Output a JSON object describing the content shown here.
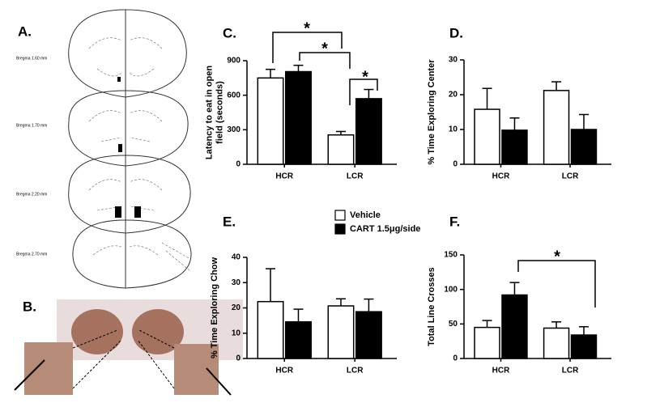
{
  "panel_a": {
    "label": "A.",
    "bregma": [
      "Bregma 1.60 mm",
      "Bregma 1.70 mm",
      "Bregma 2.20 mm",
      "Bregma 2.70 mm"
    ]
  },
  "panel_b": {
    "label": "B."
  },
  "legend": [
    {
      "name": "Vehicle",
      "color": "#ffffff"
    },
    {
      "name": "CART 1.5μg/side",
      "color": "#000000"
    }
  ],
  "chart_data": [
    {
      "type": "bar",
      "panel": "C.",
      "ylabel": [
        "Latency to eat in open",
        "field (seconds)"
      ],
      "categories": [
        "HCR",
        "LCR"
      ],
      "series": [
        {
          "color": "#ffffff",
          "values": [
            750,
            255
          ],
          "errors": [
            75,
            30
          ]
        },
        {
          "color": "#000000",
          "values": [
            805,
            570
          ],
          "errors": [
            55,
            80
          ]
        }
      ],
      "ylim": [
        0,
        900
      ],
      "yticks": [
        0,
        300,
        600,
        900
      ],
      "significance": [
        "*",
        "*",
        "*"
      ]
    },
    {
      "type": "bar",
      "panel": "D.",
      "ylabel": [
        "% Time Exploring Center"
      ],
      "categories": [
        "HCR",
        "LCR"
      ],
      "series": [
        {
          "color": "#ffffff",
          "values": [
            15.8,
            21.2
          ],
          "errors": [
            6,
            2.5
          ]
        },
        {
          "color": "#000000",
          "values": [
            9.8,
            10
          ],
          "errors": [
            3.5,
            4.3
          ]
        }
      ],
      "ylim": [
        0,
        30
      ],
      "yticks": [
        0,
        10,
        20,
        30
      ]
    },
    {
      "type": "bar",
      "panel": "E.",
      "ylabel": [
        "% Time Exploring Chow"
      ],
      "categories": [
        "HCR",
        "LCR"
      ],
      "series": [
        {
          "color": "#ffffff",
          "values": [
            22.5,
            20.8
          ],
          "errors": [
            13,
            2.8
          ]
        },
        {
          "color": "#000000",
          "values": [
            14.5,
            18.5
          ],
          "errors": [
            5,
            5
          ]
        }
      ],
      "ylim": [
        0,
        40
      ],
      "yticks": [
        0,
        10,
        20,
        30,
        40
      ]
    },
    {
      "type": "bar",
      "panel": "F.",
      "ylabel": [
        "Total Line Crosses"
      ],
      "categories": [
        "HCR",
        "LCR"
      ],
      "series": [
        {
          "color": "#ffffff",
          "values": [
            45,
            44
          ],
          "errors": [
            10,
            9
          ]
        },
        {
          "color": "#000000",
          "values": [
            92,
            34
          ],
          "errors": [
            18,
            12
          ]
        }
      ],
      "ylim": [
        0,
        150
      ],
      "yticks": [
        0,
        50,
        100,
        150
      ],
      "significance": [
        "*"
      ]
    }
  ]
}
